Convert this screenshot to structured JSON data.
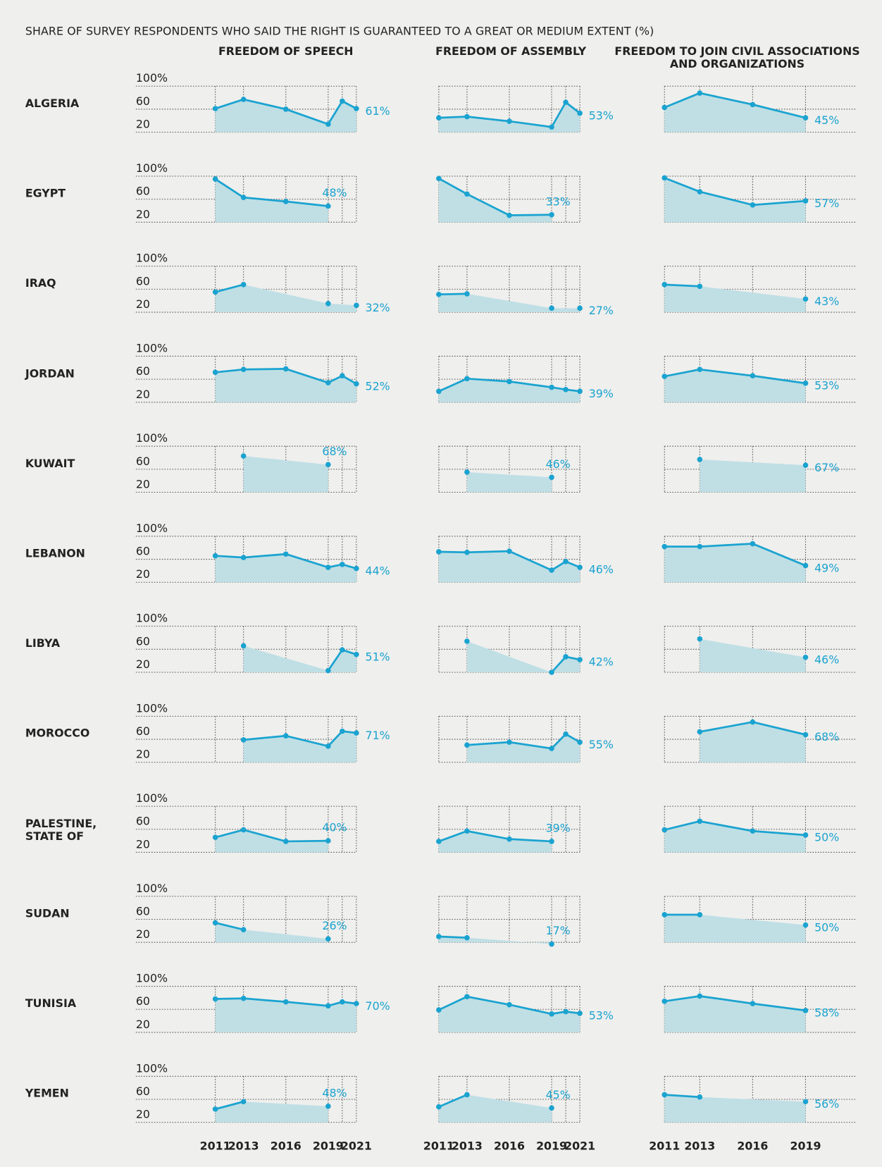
{
  "chart_data": {
    "type": "line",
    "title": "SHARE OF SURVEY RESPONDENTS WHO SAID THE RIGHT IS GUARANTEED TO A GREAT OR MEDIUM EXTENT (%)",
    "countries": [
      "ALGERIA",
      "EGYPT",
      "IRAQ",
      "JORDAN",
      "KUWAIT",
      "LEBANON",
      "LIBYA",
      "MOROCCO",
      "PALESTINE, STATE OF",
      "SUDAN",
      "TUNISIA",
      "YEMEN"
    ],
    "ylim": [
      20,
      100
    ],
    "yticks": [
      {
        "value": 100,
        "label": "100%"
      },
      60,
      20
    ],
    "color": "#1aa3d0",
    "fill": "#bfdfe5",
    "panels": [
      {
        "title": "FREEDOM OF SPEECH",
        "xlim": [
          2011,
          2021
        ],
        "x": [
          2011,
          2013,
          2016,
          2019,
          2020,
          2021
        ],
        "xticks": [
          2011,
          2013,
          2016,
          2019,
          2021
        ],
        "series": [
          {
            "values": [
              61,
              77,
              60,
              34,
              74,
              61
            ],
            "value_labels": [
              null,
              null,
              null,
              null,
              null,
              "61%"
            ]
          },
          {
            "values": [
              95,
              63,
              56,
              48,
              null,
              null
            ],
            "value_labels": [
              null,
              null,
              null,
              "48%",
              null,
              null
            ]
          },
          {
            "values": [
              55,
              68,
              null,
              35,
              null,
              32
            ],
            "value_labels": [
              null,
              null,
              null,
              null,
              null,
              "32%"
            ]
          },
          {
            "values": [
              72,
              77,
              78,
              54,
              66,
              52
            ],
            "value_labels": [
              null,
              null,
              null,
              null,
              null,
              "52%"
            ]
          },
          {
            "values": [
              null,
              83,
              null,
              68,
              null,
              null
            ],
            "value_labels": [
              null,
              null,
              null,
              "68%",
              null,
              null
            ]
          },
          {
            "values": [
              66,
              63,
              69,
              46,
              51,
              44
            ],
            "value_labels": [
              null,
              null,
              null,
              null,
              null,
              "44%"
            ]
          },
          {
            "values": [
              null,
              66,
              null,
              23,
              59,
              51
            ],
            "value_labels": [
              null,
              null,
              null,
              null,
              null,
              "51%"
            ]
          },
          {
            "values": [
              null,
              59,
              66,
              48,
              74,
              71
            ],
            "value_labels": [
              null,
              null,
              null,
              null,
              null,
              "71%"
            ]
          },
          {
            "values": [
              46,
              59,
              39,
              40,
              null,
              null
            ],
            "value_labels": [
              null,
              null,
              null,
              "40%",
              null,
              null
            ]
          },
          {
            "values": [
              54,
              42,
              null,
              26,
              null,
              null
            ],
            "value_labels": [
              null,
              null,
              null,
              "26%",
              null,
              null
            ]
          },
          {
            "values": [
              78,
              79,
              73,
              66,
              73,
              70
            ],
            "value_labels": [
              null,
              null,
              null,
              null,
              null,
              "70%"
            ]
          },
          {
            "values": [
              43,
              56,
              null,
              48,
              null,
              null
            ],
            "value_labels": [
              null,
              null,
              null,
              "48%",
              null,
              null
            ]
          }
        ]
      },
      {
        "title": "FREEDOM OF ASSEMBLY",
        "xlim": [
          2011,
          2021
        ],
        "x": [
          2011,
          2013,
          2016,
          2019,
          2020,
          2021
        ],
        "xticks": [
          2011,
          2013,
          2016,
          2019,
          2021
        ],
        "series": [
          {
            "values": [
              45,
              47,
              39,
              29,
              72,
              53
            ],
            "value_labels": [
              null,
              null,
              null,
              null,
              null,
              "53%"
            ]
          },
          {
            "values": [
              96,
              69,
              32,
              33,
              null,
              null
            ],
            "value_labels": [
              null,
              null,
              null,
              "33%",
              null,
              null
            ]
          },
          {
            "values": [
              51,
              52,
              null,
              27,
              null,
              27
            ],
            "value_labels": [
              null,
              null,
              null,
              null,
              null,
              "27%"
            ]
          },
          {
            "values": [
              39,
              61,
              56,
              46,
              42,
              39
            ],
            "value_labels": [
              null,
              null,
              null,
              null,
              null,
              "39%"
            ]
          },
          {
            "values": [
              null,
              55,
              null,
              46,
              null,
              null
            ],
            "value_labels": [
              null,
              null,
              null,
              "46%",
              null,
              null
            ]
          },
          {
            "values": [
              73,
              72,
              74,
              41,
              56,
              46
            ],
            "value_labels": [
              null,
              null,
              null,
              null,
              null,
              "46%"
            ]
          },
          {
            "values": [
              null,
              74,
              null,
              20,
              47,
              42
            ],
            "value_labels": [
              null,
              null,
              null,
              null,
              null,
              "42%"
            ]
          },
          {
            "values": [
              null,
              50,
              55,
              44,
              69,
              55
            ],
            "value_labels": [
              null,
              null,
              null,
              null,
              null,
              "55%"
            ]
          },
          {
            "values": [
              39,
              57,
              43,
              39,
              null,
              null
            ],
            "value_labels": [
              null,
              null,
              null,
              "39%",
              null,
              null
            ]
          },
          {
            "values": [
              30,
              28,
              null,
              17,
              null,
              null
            ],
            "value_labels": [
              null,
              null,
              null,
              "17%",
              null,
              null
            ]
          },
          {
            "values": [
              59,
              82,
              68,
              52,
              56,
              53
            ],
            "value_labels": [
              null,
              null,
              null,
              null,
              null,
              "53%"
            ]
          },
          {
            "values": [
              47,
              68,
              null,
              45,
              null,
              null
            ],
            "value_labels": [
              null,
              null,
              null,
              "45%",
              null,
              null
            ]
          }
        ]
      },
      {
        "title": "FREEDOM TO JOIN CIVIL ASSOCIATIONS AND ORGANIZATIONS",
        "xlim": [
          2011,
          2019
        ],
        "x": [
          2011,
          2013,
          2016,
          2019
        ],
        "xticks": [
          2011,
          2013,
          2016,
          2019
        ],
        "series": [
          {
            "values": [
              63,
              88,
              68,
              45
            ],
            "value_labels": [
              null,
              null,
              null,
              "45%"
            ]
          },
          {
            "values": [
              97,
              73,
              50,
              57
            ],
            "value_labels": [
              null,
              null,
              null,
              "57%"
            ]
          },
          {
            "values": [
              68,
              65,
              null,
              43
            ],
            "value_labels": [
              null,
              null,
              null,
              "43%"
            ]
          },
          {
            "values": [
              65,
              77,
              66,
              53
            ],
            "value_labels": [
              null,
              null,
              null,
              "53%"
            ]
          },
          {
            "values": [
              null,
              77,
              null,
              67
            ],
            "value_labels": [
              null,
              null,
              null,
              "67%"
            ]
          },
          {
            "values": [
              82,
              82,
              87,
              49
            ],
            "value_labels": [
              null,
              null,
              null,
              "49%"
            ]
          },
          {
            "values": [
              null,
              78,
              null,
              46
            ],
            "value_labels": [
              null,
              null,
              null,
              "46%"
            ]
          },
          {
            "values": [
              null,
              73,
              90,
              68
            ],
            "value_labels": [
              null,
              null,
              null,
              "68%"
            ]
          },
          {
            "values": [
              59,
              74,
              57,
              50
            ],
            "value_labels": [
              null,
              null,
              null,
              "50%"
            ]
          },
          {
            "values": [
              68,
              68,
              null,
              50
            ],
            "value_labels": [
              null,
              null,
              null,
              "50%"
            ]
          },
          {
            "values": [
              74,
              83,
              70,
              58
            ],
            "value_labels": [
              null,
              null,
              null,
              "58%"
            ]
          },
          {
            "values": [
              68,
              64,
              null,
              56
            ],
            "value_labels": [
              null,
              null,
              null,
              "56%"
            ]
          }
        ]
      }
    ]
  }
}
